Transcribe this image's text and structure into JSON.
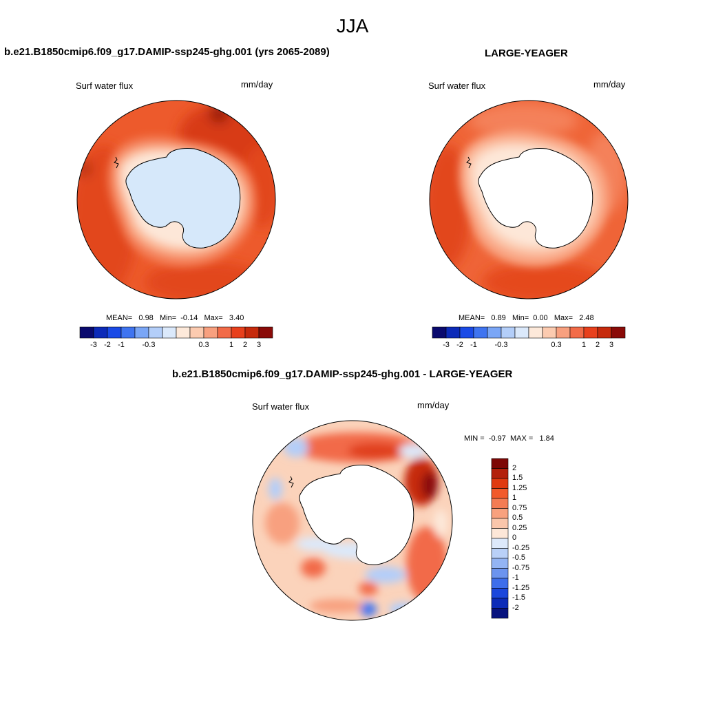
{
  "figure": {
    "season": "JJA",
    "panels": [
      {
        "title": "b.e21.B1850cmip6.f09_g17.DAMIP-ssp245-ghg.001 (yrs 2065-2089)",
        "left_label": "Surf water flux",
        "right_label": "mm/day",
        "stats": {
          "mean_label": "MEAN=",
          "mean": "0.98",
          "min_label": "Min=",
          "min": "-0.14",
          "max_label": "Max=",
          "max": "3.40"
        },
        "antarctica_fill": "#d6e8fa"
      },
      {
        "title": "LARGE-YEAGER",
        "left_label": "Surf water flux",
        "right_label": "mm/day",
        "stats": {
          "mean_label": "MEAN=",
          "mean": "0.89",
          "min_label": "Min=",
          "min": "0.00",
          "max_label": "Max=",
          "max": "2.48"
        },
        "antarctica_fill": "#ffffff"
      },
      {
        "title": "b.e21.B1850cmip6.f09_g17.DAMIP-ssp245-ghg.001 - LARGE-YEAGER",
        "left_label": "Surf water flux",
        "right_label": "mm/day",
        "minmax": {
          "min_label": "MIN =",
          "min": "-0.97",
          "max_label": "MAX =",
          "max": "1.84"
        },
        "antarctica_fill": "#ffffff"
      }
    ],
    "horizontal_colorbar": {
      "colors": [
        "#0a0a6e",
        "#0c2ab8",
        "#1a4ae6",
        "#3f74f0",
        "#7aa6f6",
        "#b3cef9",
        "#dbe9fb",
        "#fde9da",
        "#fccbb0",
        "#f8a07f",
        "#f26b48",
        "#e8401c",
        "#c62a0c",
        "#8a0b08"
      ],
      "tick_labels": [
        "-3",
        "-2",
        "-1",
        "-0.3",
        "0.3",
        "1",
        "2",
        "3"
      ]
    },
    "vertical_colorbar": {
      "colors": [
        "#7d0705",
        "#b3200b",
        "#e03a10",
        "#f25a2b",
        "#f47c54",
        "#f8a17e",
        "#fac6ab",
        "#fde7d8",
        "#dde9fb",
        "#b9d0f8",
        "#93b4f4",
        "#6c94ef",
        "#3e6eeb",
        "#1b47dc",
        "#0c2bb8",
        "#08137e"
      ],
      "tick_labels": [
        "2",
        "1.5",
        "1.25",
        "1",
        "0.75",
        "0.5",
        "0.25",
        "0",
        "-0.25",
        "-0.5",
        "-0.75",
        "-1",
        "-1.25",
        "-1.5",
        "-2"
      ]
    }
  }
}
